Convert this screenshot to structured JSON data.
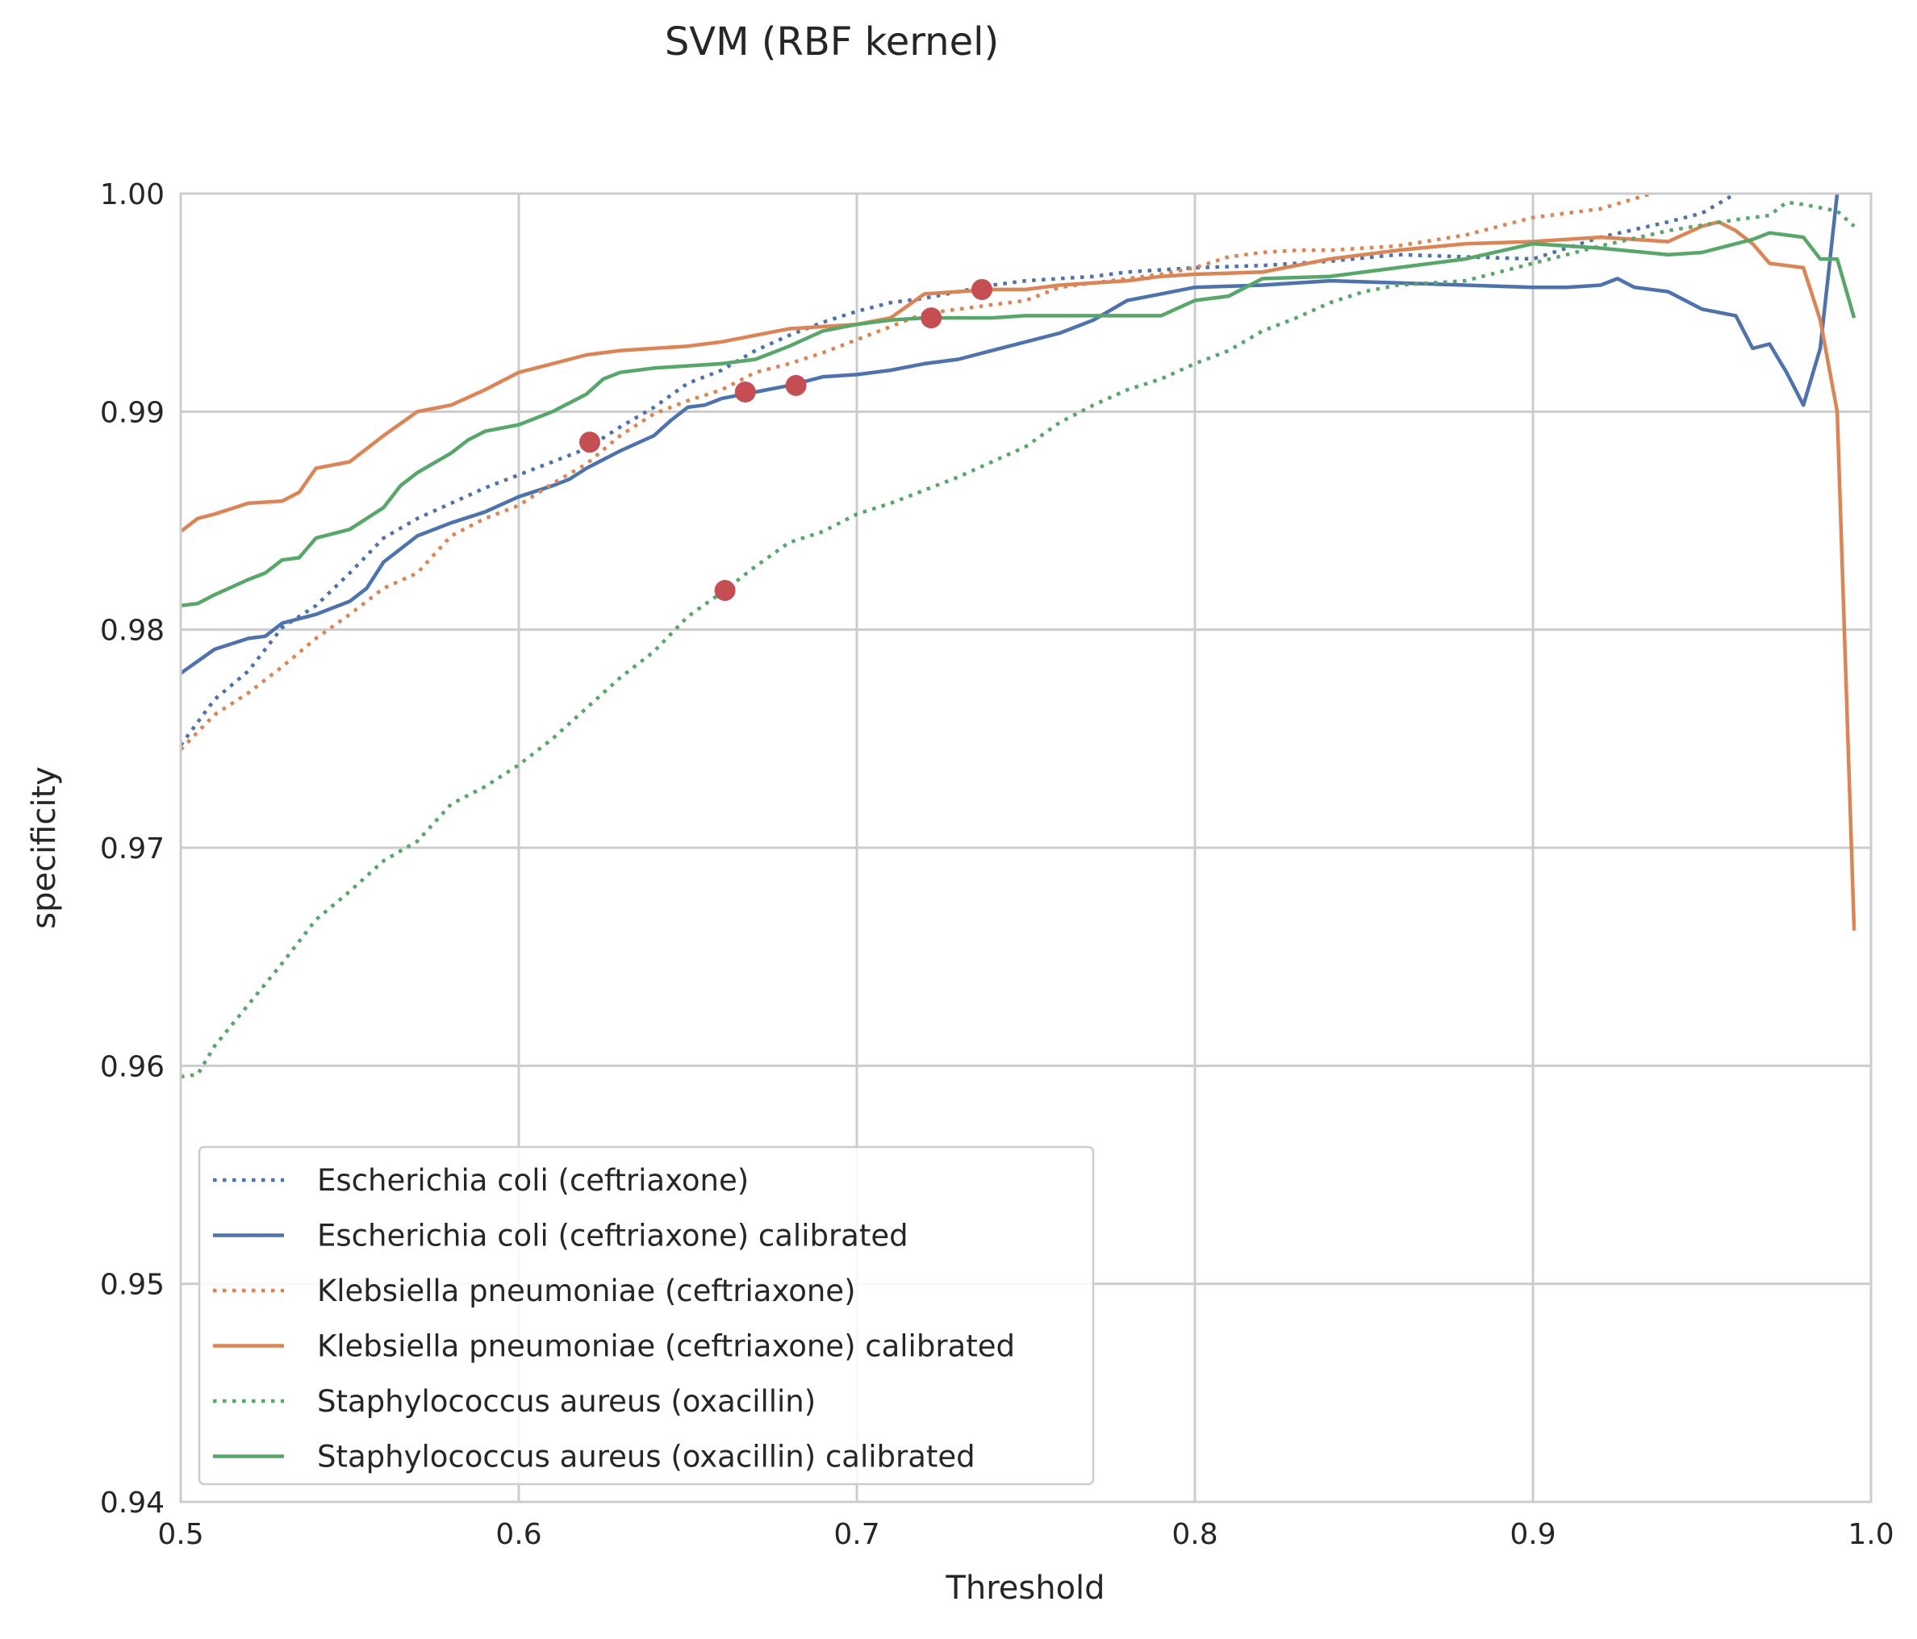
{
  "chart_data": {
    "type": "line",
    "title": "SVM (RBF kernel)",
    "xlabel": "Threshold",
    "ylabel": "specificity",
    "xlim": [
      0.5,
      1.0
    ],
    "ylim": [
      0.94,
      1.0
    ],
    "xticks": [
      "0.5",
      "0.6",
      "0.7",
      "0.8",
      "0.9",
      "1.0"
    ],
    "yticks": [
      "0.94",
      "0.95",
      "0.96",
      "0.97",
      "0.98",
      "0.99",
      "1.00"
    ],
    "grid": true,
    "legend_position": "lower-left",
    "series": [
      {
        "name": "Escherichia coli (ceftriaxone)",
        "color": "#4c72b0",
        "style": "dotted",
        "x": [
          0.5,
          0.51,
          0.52,
          0.53,
          0.54,
          0.55,
          0.56,
          0.57,
          0.58,
          0.59,
          0.6,
          0.61,
          0.62,
          0.63,
          0.64,
          0.65,
          0.66,
          0.67,
          0.68,
          0.69,
          0.7,
          0.71,
          0.72,
          0.73,
          0.74,
          0.75,
          0.76,
          0.77,
          0.78,
          0.79,
          0.8,
          0.82,
          0.84,
          0.86,
          0.88,
          0.9,
          0.92,
          0.94,
          0.95,
          0.96
        ],
        "y": [
          0.9747,
          0.9768,
          0.9781,
          0.9801,
          0.9811,
          0.9826,
          0.9842,
          0.9851,
          0.9858,
          0.9865,
          0.9871,
          0.9877,
          0.9883,
          0.9893,
          0.9902,
          0.9913,
          0.9919,
          0.9928,
          0.9935,
          0.9941,
          0.9946,
          0.995,
          0.9952,
          0.9955,
          0.9958,
          0.996,
          0.9961,
          0.9962,
          0.9964,
          0.9965,
          0.9966,
          0.9967,
          0.9969,
          0.9972,
          0.9971,
          0.997,
          0.998,
          0.9987,
          0.9991,
          1.0
        ]
      },
      {
        "name": "Escherichia coli (ceftriaxone) calibrated",
        "color": "#4c72b0",
        "style": "solid",
        "x": [
          0.5,
          0.51,
          0.52,
          0.525,
          0.53,
          0.54,
          0.55,
          0.555,
          0.56,
          0.57,
          0.58,
          0.59,
          0.6,
          0.61,
          0.615,
          0.62,
          0.63,
          0.64,
          0.645,
          0.65,
          0.655,
          0.66,
          0.67,
          0.68,
          0.69,
          0.7,
          0.71,
          0.72,
          0.73,
          0.74,
          0.75,
          0.76,
          0.77,
          0.78,
          0.79,
          0.8,
          0.82,
          0.84,
          0.86,
          0.88,
          0.9,
          0.91,
          0.92,
          0.925,
          0.93,
          0.94,
          0.95,
          0.96,
          0.965,
          0.97,
          0.975,
          0.98,
          0.985,
          0.99
        ],
        "y": [
          0.978,
          0.9791,
          0.9796,
          0.9797,
          0.9803,
          0.9807,
          0.9813,
          0.9819,
          0.9831,
          0.9843,
          0.9849,
          0.9854,
          0.9861,
          0.9866,
          0.9869,
          0.9874,
          0.9882,
          0.9889,
          0.9896,
          0.9902,
          0.9903,
          0.9906,
          0.9909,
          0.9912,
          0.9916,
          0.9917,
          0.9919,
          0.9922,
          0.9924,
          0.9928,
          0.9932,
          0.9936,
          0.9942,
          0.9951,
          0.9954,
          0.9957,
          0.9958,
          0.996,
          0.9959,
          0.9958,
          0.9957,
          0.9957,
          0.9958,
          0.9961,
          0.9957,
          0.9955,
          0.9947,
          0.9944,
          0.9929,
          0.9931,
          0.9918,
          0.9903,
          0.9929,
          1.0
        ]
      },
      {
        "name": "Klebsiella pneumoniae (ceftriaxone)",
        "color": "#dd8452",
        "style": "dotted",
        "x": [
          0.5,
          0.51,
          0.52,
          0.53,
          0.54,
          0.55,
          0.56,
          0.57,
          0.58,
          0.59,
          0.6,
          0.61,
          0.62,
          0.63,
          0.64,
          0.65,
          0.66,
          0.67,
          0.68,
          0.69,
          0.7,
          0.71,
          0.72,
          0.73,
          0.74,
          0.75,
          0.76,
          0.77,
          0.78,
          0.79,
          0.8,
          0.81,
          0.82,
          0.83,
          0.84,
          0.86,
          0.88,
          0.9,
          0.92,
          0.935
        ],
        "y": [
          0.9745,
          0.9761,
          0.9771,
          0.9783,
          0.9796,
          0.9807,
          0.9819,
          0.9826,
          0.9843,
          0.9851,
          0.9857,
          0.9867,
          0.9876,
          0.9889,
          0.9899,
          0.9905,
          0.991,
          0.9918,
          0.9922,
          0.9927,
          0.9933,
          0.9939,
          0.9945,
          0.9947,
          0.9949,
          0.9951,
          0.9957,
          0.9959,
          0.9961,
          0.9963,
          0.9966,
          0.9971,
          0.9973,
          0.9974,
          0.9974,
          0.9976,
          0.9981,
          0.9989,
          0.9993,
          1.0
        ]
      },
      {
        "name": "Klebsiella pneumoniae (ceftriaxone) calibrated",
        "color": "#dd8452",
        "style": "solid",
        "x": [
          0.5,
          0.505,
          0.51,
          0.52,
          0.53,
          0.535,
          0.54,
          0.55,
          0.56,
          0.57,
          0.58,
          0.59,
          0.6,
          0.61,
          0.62,
          0.63,
          0.64,
          0.65,
          0.66,
          0.67,
          0.68,
          0.69,
          0.7,
          0.71,
          0.72,
          0.73,
          0.74,
          0.75,
          0.76,
          0.77,
          0.78,
          0.79,
          0.8,
          0.82,
          0.84,
          0.86,
          0.88,
          0.9,
          0.92,
          0.94,
          0.95,
          0.955,
          0.96,
          0.965,
          0.97,
          0.975,
          0.98,
          0.985,
          0.99,
          0.995
        ],
        "y": [
          0.9845,
          0.9851,
          0.9853,
          0.9858,
          0.9859,
          0.9863,
          0.9874,
          0.9877,
          0.9889,
          0.99,
          0.9903,
          0.991,
          0.9918,
          0.9922,
          0.9926,
          0.9928,
          0.9929,
          0.993,
          0.9932,
          0.9935,
          0.9938,
          0.9939,
          0.994,
          0.9943,
          0.9954,
          0.9955,
          0.9956,
          0.9956,
          0.9958,
          0.9959,
          0.996,
          0.9962,
          0.9963,
          0.9964,
          0.997,
          0.9974,
          0.9977,
          0.9978,
          0.998,
          0.9978,
          0.9985,
          0.9987,
          0.9983,
          0.9977,
          0.9968,
          0.9967,
          0.9966,
          0.9942,
          0.99,
          0.9662
        ]
      },
      {
        "name": "Staphylococcus aureus (oxacillin)",
        "color": "#55a868",
        "style": "dotted",
        "x": [
          0.5,
          0.505,
          0.51,
          0.52,
          0.53,
          0.54,
          0.55,
          0.56,
          0.57,
          0.58,
          0.59,
          0.6,
          0.61,
          0.62,
          0.63,
          0.64,
          0.65,
          0.66,
          0.67,
          0.68,
          0.69,
          0.7,
          0.71,
          0.72,
          0.73,
          0.74,
          0.75,
          0.76,
          0.77,
          0.78,
          0.79,
          0.8,
          0.81,
          0.82,
          0.83,
          0.84,
          0.85,
          0.86,
          0.88,
          0.9,
          0.92,
          0.94,
          0.96,
          0.97,
          0.975,
          0.98,
          0.99,
          0.995
        ],
        "y": [
          0.9595,
          0.9596,
          0.9609,
          0.9628,
          0.9647,
          0.9667,
          0.968,
          0.9694,
          0.9703,
          0.972,
          0.9728,
          0.9738,
          0.975,
          0.9764,
          0.9778,
          0.979,
          0.9806,
          0.9817,
          0.9829,
          0.984,
          0.9845,
          0.9853,
          0.9858,
          0.9864,
          0.987,
          0.9877,
          0.9884,
          0.9895,
          0.9903,
          0.991,
          0.9915,
          0.9922,
          0.9928,
          0.9937,
          0.9943,
          0.995,
          0.9955,
          0.9958,
          0.996,
          0.9968,
          0.9976,
          0.9983,
          0.9988,
          0.999,
          0.9996,
          0.9995,
          0.9992,
          0.9985
        ]
      },
      {
        "name": "Staphylococcus aureus (oxacillin) calibrated",
        "color": "#55a868",
        "style": "solid",
        "x": [
          0.5,
          0.505,
          0.51,
          0.52,
          0.525,
          0.53,
          0.535,
          0.54,
          0.55,
          0.56,
          0.565,
          0.57,
          0.58,
          0.585,
          0.59,
          0.6,
          0.61,
          0.62,
          0.625,
          0.63,
          0.64,
          0.65,
          0.66,
          0.67,
          0.68,
          0.69,
          0.7,
          0.71,
          0.72,
          0.73,
          0.74,
          0.75,
          0.76,
          0.77,
          0.78,
          0.79,
          0.8,
          0.81,
          0.82,
          0.84,
          0.86,
          0.88,
          0.9,
          0.92,
          0.94,
          0.95,
          0.96,
          0.965,
          0.97,
          0.975,
          0.98,
          0.985,
          0.99,
          0.995
        ],
        "y": [
          0.9811,
          0.9812,
          0.9816,
          0.9823,
          0.9826,
          0.9832,
          0.9833,
          0.9842,
          0.9846,
          0.9856,
          0.9866,
          0.9872,
          0.9881,
          0.9887,
          0.9891,
          0.9894,
          0.99,
          0.9908,
          0.9915,
          0.9918,
          0.992,
          0.9921,
          0.9922,
          0.9924,
          0.993,
          0.9937,
          0.994,
          0.9942,
          0.9943,
          0.9943,
          0.9943,
          0.9944,
          0.9944,
          0.9944,
          0.9944,
          0.9944,
          0.9951,
          0.9953,
          0.9961,
          0.9962,
          0.9966,
          0.997,
          0.9977,
          0.9975,
          0.9972,
          0.9973,
          0.9977,
          0.9979,
          0.9982,
          0.9981,
          0.998,
          0.997,
          0.997,
          0.9943
        ]
      }
    ],
    "markers": {
      "color": "#c44e52",
      "points": [
        {
          "x": 0.621,
          "y": 0.9886
        },
        {
          "x": 0.667,
          "y": 0.9909
        },
        {
          "x": 0.682,
          "y": 0.9912
        },
        {
          "x": 0.722,
          "y": 0.9943
        },
        {
          "x": 0.737,
          "y": 0.9956
        },
        {
          "x": 0.661,
          "y": 0.9818
        }
      ]
    }
  }
}
